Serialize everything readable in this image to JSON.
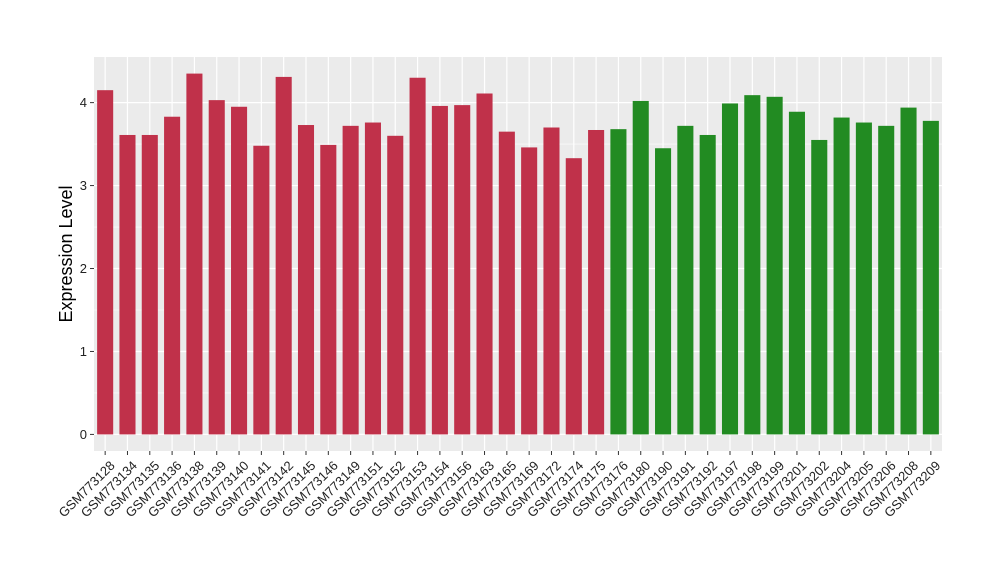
{
  "chart_data": {
    "type": "bar",
    "ylabel": "Expression Level",
    "xlabel": "",
    "ylim": [
      -0.2,
      4.55
    ],
    "yticks": [
      0,
      1,
      2,
      3,
      4
    ],
    "grid": true,
    "legend": "none",
    "colors": {
      "group1": "#C0314A",
      "group2": "#228B22",
      "panel": "#EBEBEB",
      "grid": "#FFFFFF"
    },
    "categories": [
      "GSM773128",
      "GSM773134",
      "GSM773135",
      "GSM773136",
      "GSM773138",
      "GSM773139",
      "GSM773140",
      "GSM773141",
      "GSM773142",
      "GSM773145",
      "GSM773146",
      "GSM773149",
      "GSM773151",
      "GSM773152",
      "GSM773153",
      "GSM773154",
      "GSM773156",
      "GSM773163",
      "GSM773165",
      "GSM773169",
      "GSM773172",
      "GSM773174",
      "GSM773175",
      "GSM773176",
      "GSM773180",
      "GSM773190",
      "GSM773191",
      "GSM773192",
      "GSM773197",
      "GSM773198",
      "GSM773199",
      "GSM773201",
      "GSM773202",
      "GSM773204",
      "GSM773205",
      "GSM773206",
      "GSM773208",
      "GSM773209"
    ],
    "values": [
      4.15,
      3.61,
      3.61,
      3.83,
      4.35,
      4.03,
      3.95,
      3.48,
      4.31,
      3.73,
      3.49,
      3.72,
      3.76,
      3.6,
      4.3,
      3.96,
      3.97,
      4.11,
      3.65,
      3.46,
      3.7,
      3.33,
      3.67,
      3.68,
      4.02,
      3.45,
      3.72,
      3.61,
      3.99,
      4.09,
      4.07,
      3.89,
      3.55,
      3.82,
      3.76,
      3.72,
      3.94,
      3.78
    ],
    "groups": [
      1,
      1,
      1,
      1,
      1,
      1,
      1,
      1,
      1,
      1,
      1,
      1,
      1,
      1,
      1,
      1,
      1,
      1,
      1,
      1,
      1,
      1,
      1,
      2,
      2,
      2,
      2,
      2,
      2,
      2,
      2,
      2,
      2,
      2,
      2,
      2,
      2,
      2
    ]
  }
}
